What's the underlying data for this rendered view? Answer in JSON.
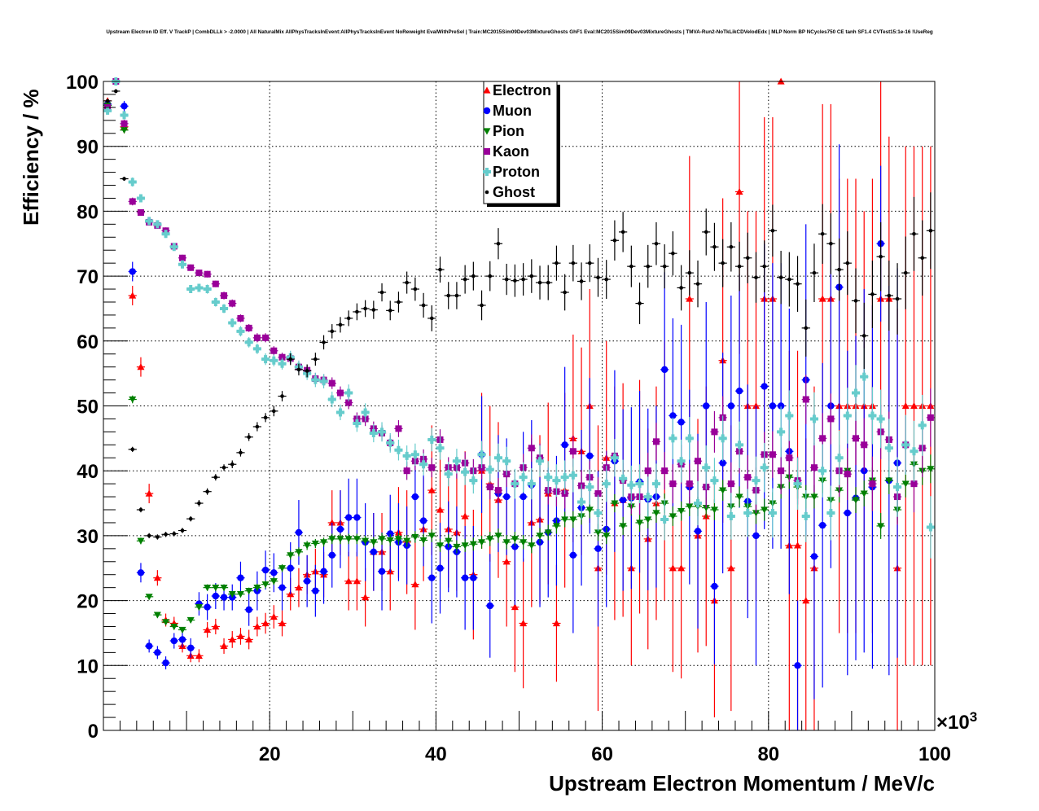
{
  "chart_data": {
    "type": "scatter",
    "title": "Upstream Electron ID Eff. V TrackP | CombDLLk > -2.0000 | All NaturalMix AllPhysTracksInEvent:AllPhysTracksInEvent NoReweight EvalWithPreSel | Train:MC2015Sim09Dev03MixtureGhosts GhF1 Eval:MC2015Sim09Dev03MixtureGhosts | TMVA-Run2-NoTkLikCDVelodEdx | MLP Norm BP NCycles750 CE tanh SF1.4 CVTest15:1e-16 !UseReg",
    "xlabel": "Upstream Electron Momentum / MeV/c",
    "ylabel": "Efficiency / %",
    "x_multiplier_label": "×10",
    "x_multiplier_exponent": "3",
    "xlim": [
      0,
      100
    ],
    "ylim": [
      0,
      100
    ],
    "x_bin_start": 0,
    "x_bin_width": 1,
    "xticks": [
      "20",
      "40",
      "60",
      "80",
      "100"
    ],
    "yticks": [
      "0",
      "10",
      "20",
      "30",
      "40",
      "50",
      "60",
      "70",
      "80",
      "90",
      "100"
    ],
    "grid": true,
    "legend_position": "top-center",
    "series": [
      {
        "name": "Electron",
        "color": "#ff0000",
        "marker": "triangle-up",
        "values": [
          97,
          null,
          93,
          67,
          56,
          36.5,
          23.5,
          17,
          16.5,
          13,
          11.5,
          11.5,
          15.5,
          16,
          13,
          14,
          14.5,
          14,
          16,
          16.5,
          17.5,
          16.5,
          21,
          22,
          24,
          24.5,
          24,
          32,
          32,
          23,
          23,
          20.5,
          27.5,
          27.5,
          24.5,
          30.5,
          29,
          22.5,
          31,
          37,
          34,
          31,
          30.5,
          33,
          24,
          40,
          38,
          35.5,
          26,
          19,
          16.5,
          32,
          32.5,
          36.5,
          16.5,
          37,
          45,
          43,
          50,
          25,
          42,
          35,
          35.5,
          25,
          36,
          29.5,
          35,
          40,
          25,
          25,
          66.5,
          30,
          33,
          20,
          57,
          25,
          83,
          50,
          50,
          66.5,
          66.5,
          100,
          28.5,
          28.5,
          20,
          25,
          66.5,
          66.5,
          50,
          50,
          50,
          50,
          50,
          66.5,
          66.5,
          25,
          50,
          50,
          50,
          50
        ],
        "errors": [
          0.5,
          null,
          1,
          1.5,
          1.5,
          1.5,
          1.2,
          1,
          1,
          1,
          1,
          1,
          1.2,
          1.2,
          1.2,
          1.3,
          1.3,
          1.5,
          1.5,
          1.6,
          1.8,
          2,
          2.5,
          3,
          3,
          3.5,
          3.5,
          5,
          5,
          4.5,
          4.5,
          4.5,
          6,
          6,
          6,
          7,
          8,
          7,
          8,
          10,
          9,
          9,
          9,
          10,
          10,
          12,
          12,
          12,
          10,
          10,
          10,
          13,
          13,
          14,
          9,
          15,
          16,
          16,
          18,
          22,
          18,
          18,
          18,
          15,
          18,
          17,
          18,
          20,
          16,
          17,
          22,
          18,
          20,
          18,
          25,
          22,
          25,
          30,
          30,
          28,
          28,
          0,
          30,
          30,
          25,
          28,
          30,
          30,
          35,
          35,
          35,
          30,
          35,
          35,
          25,
          40,
          40,
          40,
          40,
          40
        ]
      },
      {
        "name": "Muon",
        "color": "#0000ff",
        "marker": "circle",
        "values": [
          96.5,
          null,
          96.2,
          70.7,
          24.3,
          13,
          12,
          10.4,
          13.8,
          14,
          12.7,
          19.5,
          19,
          20.7,
          20.5,
          20.5,
          23.5,
          18.6,
          21.5,
          24.7,
          24.3,
          22,
          25,
          30.5,
          23,
          21.5,
          24.5,
          27,
          31,
          32.8,
          32.8,
          29,
          27.5,
          24.5,
          30.3,
          29,
          28.5,
          36,
          32.3,
          23.5,
          25,
          28.3,
          27.5,
          23.5,
          23.5,
          42.5,
          19.2,
          36.5,
          36,
          28.3,
          36,
          37.8,
          29,
          30.5,
          32.3,
          44,
          27,
          34.3,
          42.3,
          28,
          31,
          41.5,
          35.5,
          35.8,
          38.3,
          35.6,
          36,
          55.6,
          48.5,
          47.5,
          37.5,
          30.7,
          50,
          22.2,
          41.2,
          50,
          52.3,
          35.3,
          30,
          53,
          50,
          50,
          43,
          10,
          54,
          26.8,
          31.6,
          50,
          68.3,
          33.5,
          35.8,
          40,
          37.5,
          75,
          38.5,
          41.2,
          null,
          null,
          null,
          null
        ],
        "errors": [
          0.5,
          null,
          0.8,
          1.5,
          1.5,
          1,
          1,
          1,
          1.2,
          1.2,
          1.5,
          1.8,
          2,
          2,
          2,
          2,
          2.5,
          2.5,
          3,
          3,
          3,
          3.5,
          4,
          5,
          4,
          4,
          5,
          5,
          6,
          6,
          6,
          6,
          6,
          6,
          6,
          6,
          6,
          7,
          7,
          7,
          7,
          7,
          7,
          8,
          8,
          9,
          8,
          9,
          9,
          9,
          10,
          10,
          10,
          10,
          10,
          12,
          12,
          12,
          12,
          12,
          12,
          14,
          14,
          14,
          14,
          14,
          14,
          15,
          15,
          15,
          15,
          15,
          16,
          12,
          17,
          17,
          18,
          18,
          20,
          22,
          22,
          22,
          22,
          10,
          24,
          22,
          25,
          25,
          22,
          25,
          25,
          28,
          28,
          12,
          30,
          30,
          null,
          null,
          null,
          null
        ]
      },
      {
        "name": "Pion",
        "color": "#008000",
        "marker": "triangle-down",
        "values": [
          96.3,
          null,
          92.5,
          51,
          29.2,
          20.6,
          17.8,
          16.7,
          16,
          15.5,
          17,
          19,
          22,
          22,
          22,
          21,
          21,
          21.5,
          22,
          22.5,
          23,
          25,
          27,
          27.5,
          28.5,
          28.8,
          29,
          29.5,
          29.5,
          29.5,
          29.5,
          29.2,
          29,
          29.5,
          29.3,
          29.5,
          29.2,
          29.8,
          29.3,
          30,
          28.5,
          29.2,
          28.3,
          28.5,
          28.7,
          29,
          29.5,
          30,
          29,
          29.5,
          29,
          28.5,
          30,
          30.5,
          31.5,
          32.5,
          32.5,
          33,
          34,
          30.5,
          30,
          35,
          31.5,
          34.5,
          32,
          32.5,
          33.5,
          35,
          33,
          33.8,
          34.5,
          34.5,
          34.3,
          34,
          37,
          34.5,
          36,
          34.5,
          33.5,
          34,
          35,
          37.5,
          39,
          37.5,
          36,
          36,
          38.5,
          35.5,
          37,
          40,
          35.5,
          36.5,
          38.5,
          31.5,
          38.5,
          34,
          38,
          41,
          40,
          40.3
        ],
        "errors": [
          0.3,
          null,
          0.4,
          0.6,
          0.5,
          0.4,
          0.4,
          0.4,
          0.4,
          0.4,
          0.4,
          0.5,
          0.5,
          0.5,
          0.5,
          0.5,
          0.5,
          0.5,
          0.6,
          0.6,
          0.6,
          0.6,
          0.7,
          0.7,
          0.7,
          0.7,
          0.7,
          0.8,
          0.8,
          0.8,
          0.8,
          0.8,
          0.8,
          0.9,
          0.9,
          0.9,
          0.9,
          0.9,
          1,
          1,
          1,
          1,
          1,
          1,
          1,
          1,
          1.1,
          1.1,
          1.1,
          1.1,
          1.1,
          1.2,
          1.2,
          1.2,
          1.2,
          1.2,
          1.3,
          1.3,
          1.3,
          1.3,
          1.3,
          1.4,
          1.4,
          1.4,
          1.4,
          1.4,
          1.5,
          1.5,
          1.5,
          1.5,
          1.5,
          1.5,
          1.6,
          1.6,
          1.6,
          1.6,
          1.6,
          1.7,
          1.7,
          1.7,
          1.7,
          1.8,
          1.8,
          1.8,
          1.8,
          1.8,
          1.9,
          1.9,
          1.9,
          2,
          2,
          2,
          2,
          2,
          2.1,
          2.1,
          2.1,
          2.2,
          2.2,
          2.2
        ]
      },
      {
        "name": "Kaon",
        "color": "#990099",
        "marker": "square",
        "values": [
          96,
          100,
          93.5,
          81.5,
          79.8,
          78.3,
          77.8,
          77,
          74.6,
          72.8,
          71.3,
          70.5,
          70.3,
          68.8,
          67,
          65.8,
          63.5,
          62,
          60.5,
          60.5,
          58.5,
          57.5,
          57.3,
          56,
          55.5,
          54.2,
          54,
          53.5,
          52,
          50.5,
          48,
          48,
          46.5,
          45.8,
          44.3,
          46.5,
          40,
          41.5,
          41.8,
          40.5,
          44.8,
          40.5,
          40.5,
          41.2,
          40,
          40.5,
          37.5,
          37,
          39.5,
          38,
          40.5,
          43.5,
          42,
          37,
          36.8,
          36.5,
          43,
          37.7,
          39,
          36.5,
          40.5,
          42.3,
          38.5,
          36,
          36,
          40,
          44.5,
          40,
          38,
          41,
          38,
          41.5,
          37.5,
          46,
          48.2,
          38,
          43,
          39,
          37,
          42.5,
          42.5,
          40,
          42,
          38.5,
          51,
          40.5,
          45,
          48,
          40,
          39.5,
          45,
          44,
          38,
          46,
          44.8,
          36,
          44,
          38,
          43.5,
          48.2
        ],
        "errors": [
          0.5,
          0.2,
          0.6,
          0.6,
          0.5,
          0.5,
          0.5,
          0.5,
          0.5,
          0.5,
          0.5,
          0.5,
          0.5,
          0.5,
          0.6,
          0.6,
          0.6,
          0.6,
          0.7,
          0.7,
          0.7,
          0.7,
          0.8,
          0.8,
          0.8,
          0.9,
          0.9,
          0.9,
          1,
          1,
          1,
          1.1,
          1.1,
          1.2,
          1.2,
          1.3,
          1.4,
          1.4,
          1.5,
          1.5,
          1.6,
          1.6,
          1.7,
          1.7,
          1.8,
          1.8,
          1.9,
          1.9,
          2,
          2,
          2.1,
          2.1,
          2.2,
          2.2,
          2.3,
          2.3,
          2.4,
          2.4,
          2.5,
          2.5,
          2.6,
          2.6,
          2.7,
          2.7,
          2.8,
          2.8,
          2.9,
          2.9,
          3,
          3,
          3.1,
          3.1,
          3.2,
          3.2,
          3.3,
          3.3,
          3.4,
          3.4,
          3.5,
          3.5,
          3.6,
          3.6,
          3.7,
          3.7,
          3.8,
          3.8,
          3.9,
          3.9,
          4,
          4,
          4.1,
          4.1,
          4.2,
          4.2,
          4.3,
          4.3,
          4.4,
          4.4,
          4.5,
          4.5
        ]
      },
      {
        "name": "Proton",
        "color": "#66cccc",
        "marker": "cross",
        "values": [
          95.5,
          100,
          94.8,
          84.5,
          82,
          78.5,
          78,
          76.5,
          74.5,
          71.8,
          68,
          68.2,
          68,
          66,
          65,
          62.8,
          61.5,
          59.8,
          58.8,
          57.2,
          57,
          56.5,
          57.5,
          56,
          55,
          54,
          53.8,
          51,
          49,
          52,
          47.3,
          49,
          45.8,
          46,
          44.3,
          43.2,
          42.3,
          42.5,
          41,
          44.8,
          43.5,
          39.5,
          41.5,
          39.8,
          38.5,
          42.5,
          40.2,
          42,
          41.5,
          38,
          39,
          38,
          41.5,
          39,
          38.5,
          39,
          39.3,
          35.2,
          37.5,
          33.5,
          38,
          42,
          38.8,
          37.8,
          38,
          36,
          38,
          32.5,
          45,
          41.5,
          45,
          35,
          40.5,
          38.5,
          45,
          33,
          44,
          33.5,
          38.5,
          40.5,
          33.5,
          46,
          48.5,
          38,
          33,
          48,
          40,
          33.5,
          42,
          48.5,
          52,
          54.5,
          48.5,
          48,
          43.5,
          37.5,
          44,
          43,
          47,
          31.3
        ],
        "errors": [
          0.5,
          0.2,
          0.6,
          0.7,
          0.6,
          0.6,
          0.6,
          0.6,
          0.6,
          0.6,
          0.6,
          0.6,
          0.7,
          0.7,
          0.7,
          0.7,
          0.8,
          0.8,
          0.8,
          0.9,
          0.9,
          0.9,
          1,
          1,
          1,
          1.1,
          1.1,
          1.2,
          1.2,
          1.3,
          1.3,
          1.4,
          1.4,
          1.5,
          1.5,
          1.6,
          1.6,
          1.7,
          1.7,
          1.8,
          1.8,
          1.9,
          1.9,
          2,
          2,
          2.1,
          2.1,
          2.2,
          2.2,
          2.3,
          2.3,
          2.4,
          2.4,
          2.5,
          2.5,
          2.6,
          2.6,
          2.7,
          2.7,
          2.8,
          2.8,
          2.9,
          2.9,
          3,
          3,
          3.1,
          3.1,
          3.2,
          3.2,
          3.3,
          3.3,
          3.4,
          3.4,
          3.5,
          3.5,
          3.6,
          3.6,
          3.7,
          3.7,
          3.8,
          3.8,
          3.9,
          3.9,
          4,
          4,
          4.1,
          4.1,
          4.2,
          4.2,
          4.3,
          4.3,
          4.4,
          4.4,
          4.5,
          4.5,
          4.6,
          4.6,
          4.7,
          4.7,
          4.8
        ]
      },
      {
        "name": "Ghost",
        "color": "#000000",
        "marker": "dot",
        "values": [
          97,
          98.5,
          85,
          43.3,
          34,
          30,
          29.8,
          30.2,
          30.3,
          30.8,
          32.6,
          35,
          36.8,
          39,
          40.5,
          41,
          42.8,
          45.2,
          46.8,
          48.2,
          49.2,
          51.5,
          57.2,
          55.6,
          55.4,
          57.2,
          59.8,
          61.5,
          62.5,
          63.5,
          64.5,
          65,
          64.8,
          67.5,
          64.7,
          66,
          69,
          68,
          65.5,
          63.5,
          71,
          67,
          67,
          69.5,
          70,
          65.5,
          70,
          75,
          69.5,
          69.3,
          69.5,
          70,
          69,
          69,
          72,
          67.5,
          72,
          69.2,
          72,
          69.8,
          69.5,
          75.5,
          76.8,
          71.5,
          65.8,
          71.5,
          75,
          71.5,
          73.5,
          68.2,
          70.5,
          68.8,
          76.8,
          74.5,
          72,
          74.5,
          71.5,
          72.8,
          69.8,
          71.5,
          77,
          69.8,
          69.5,
          68.8,
          62,
          70.5,
          76.5,
          75,
          71,
          72,
          66.2,
          60.8,
          67.2,
          73,
          67,
          66.5,
          70.5,
          76.5,
          72.8,
          77
        ],
        "errors": [
          0.3,
          0.3,
          0.3,
          0.4,
          0.4,
          0.4,
          0.4,
          0.4,
          0.4,
          0.4,
          0.4,
          0.5,
          0.5,
          0.5,
          0.5,
          0.6,
          0.6,
          0.6,
          0.7,
          0.7,
          0.8,
          0.8,
          0.9,
          0.9,
          1,
          1,
          1.1,
          1.1,
          1.2,
          1.2,
          1.3,
          1.3,
          1.4,
          1.4,
          1.5,
          1.6,
          1.7,
          1.8,
          1.9,
          2,
          2,
          2.1,
          2.1,
          2.2,
          2.2,
          2.3,
          2.3,
          2.4,
          2.4,
          2.5,
          2.5,
          2.6,
          2.6,
          2.7,
          2.7,
          2.8,
          2.8,
          2.9,
          2.9,
          3,
          3,
          3.1,
          3.1,
          3.2,
          3.2,
          3.3,
          3.3,
          3.4,
          3.4,
          3.5,
          3.5,
          3.6,
          3.6,
          3.7,
          3.7,
          3.8,
          3.8,
          3.9,
          3.9,
          4,
          4,
          4.1,
          4.2,
          4.3,
          4.4,
          4.5,
          4.6,
          4.7,
          4.8,
          4.9,
          5,
          5.1,
          5.2,
          5.3,
          5.4,
          5.5,
          5.6,
          5.7,
          5.8,
          5.9
        ]
      }
    ]
  }
}
